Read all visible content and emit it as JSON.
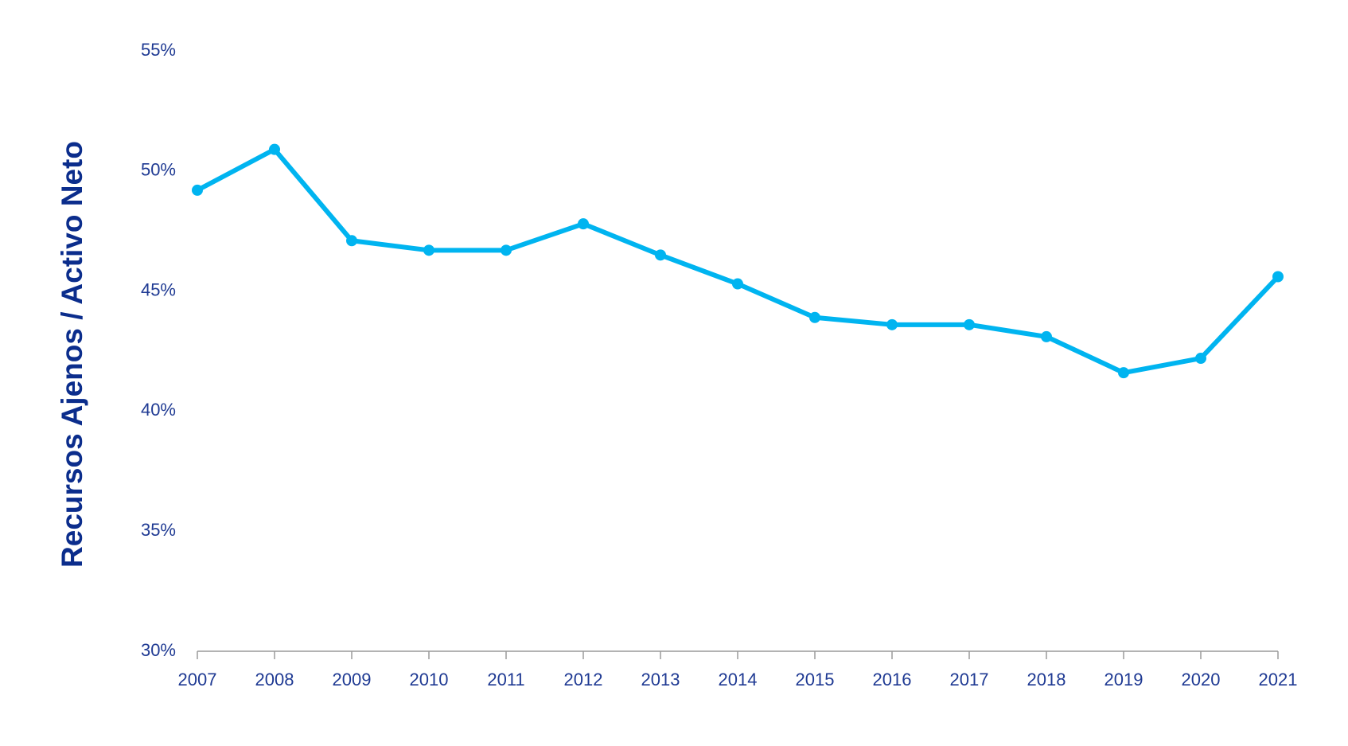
{
  "chart_data": {
    "type": "line",
    "title": "",
    "xlabel": "",
    "ylabel": "Recursos Ajenos / Activo Neto",
    "x": [
      "2007",
      "2008",
      "2009",
      "2010",
      "2011",
      "2012",
      "2013",
      "2014",
      "2015",
      "2016",
      "2017",
      "2018",
      "2019",
      "2020",
      "2021"
    ],
    "series": [
      {
        "values": [
          49.2,
          50.9,
          47.1,
          46.7,
          46.7,
          47.8,
          46.5,
          45.3,
          43.9,
          43.6,
          43.6,
          43.1,
          41.6,
          42.2,
          45.6
        ]
      }
    ],
    "ylim": [
      30,
      55
    ],
    "yticks": [
      "30%",
      "35%",
      "40%",
      "45%",
      "50%",
      "55%"
    ],
    "ytick_values": [
      30,
      35,
      40,
      45,
      50,
      55
    ],
    "grid": false,
    "legend": "none",
    "colors": {
      "line": "#00b4f0",
      "axis": "#9a9a9a",
      "text": "#1f3a93",
      "title": "#0b2d8c"
    }
  }
}
